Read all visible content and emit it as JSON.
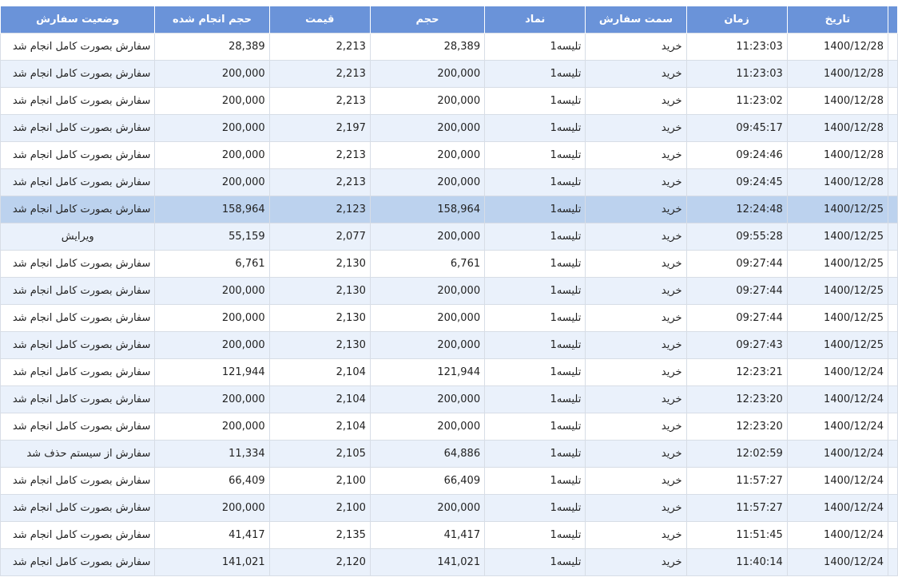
{
  "table": {
    "columns": [
      "تاریخ",
      "زمان",
      "سمت سفارش",
      "نماد",
      "حجم",
      "قیمت",
      "حجم انجام شده",
      "وضعیت سفارش"
    ],
    "rows": [
      {
        "date": "1400/12/28",
        "time": "11:23:03",
        "side": "خرید",
        "symbol": "تلیسه1",
        "volume": "28,389",
        "price": "2,213",
        "filled": "28,389",
        "status": "سفارش بصورت کامل انجام شد"
      },
      {
        "date": "1400/12/28",
        "time": "11:23:03",
        "side": "خرید",
        "symbol": "تلیسه1",
        "volume": "200,000",
        "price": "2,213",
        "filled": "200,000",
        "status": "سفارش بصورت کامل انجام شد"
      },
      {
        "date": "1400/12/28",
        "time": "11:23:02",
        "side": "خرید",
        "symbol": "تلیسه1",
        "volume": "200,000",
        "price": "2,213",
        "filled": "200,000",
        "status": "سفارش بصورت کامل انجام شد"
      },
      {
        "date": "1400/12/28",
        "time": "09:45:17",
        "side": "خرید",
        "symbol": "تلیسه1",
        "volume": "200,000",
        "price": "2,197",
        "filled": "200,000",
        "status": "سفارش بصورت کامل انجام شد"
      },
      {
        "date": "1400/12/28",
        "time": "09:24:46",
        "side": "خرید",
        "symbol": "تلیسه1",
        "volume": "200,000",
        "price": "2,213",
        "filled": "200,000",
        "status": "سفارش بصورت کامل انجام شد"
      },
      {
        "date": "1400/12/28",
        "time": "09:24:45",
        "side": "خرید",
        "symbol": "تلیسه1",
        "volume": "200,000",
        "price": "2,213",
        "filled": "200,000",
        "status": "سفارش بصورت کامل انجام شد"
      },
      {
        "date": "1400/12/25",
        "time": "12:24:48",
        "side": "خرید",
        "symbol": "تلیسه1",
        "volume": "158,964",
        "price": "2,123",
        "filled": "158,964",
        "status": "سفارش بصورت کامل انجام شد",
        "selected": true
      },
      {
        "date": "1400/12/25",
        "time": "09:55:28",
        "side": "خرید",
        "symbol": "تلیسه1",
        "volume": "200,000",
        "price": "2,077",
        "filled": "55,159",
        "status": "ویرایش"
      },
      {
        "date": "1400/12/25",
        "time": "09:27:44",
        "side": "خرید",
        "symbol": "تلیسه1",
        "volume": "6,761",
        "price": "2,130",
        "filled": "6,761",
        "status": "سفارش بصورت کامل انجام شد"
      },
      {
        "date": "1400/12/25",
        "time": "09:27:44",
        "side": "خرید",
        "symbol": "تلیسه1",
        "volume": "200,000",
        "price": "2,130",
        "filled": "200,000",
        "status": "سفارش بصورت کامل انجام شد"
      },
      {
        "date": "1400/12/25",
        "time": "09:27:44",
        "side": "خرید",
        "symbol": "تلیسه1",
        "volume": "200,000",
        "price": "2,130",
        "filled": "200,000",
        "status": "سفارش بصورت کامل انجام شد"
      },
      {
        "date": "1400/12/25",
        "time": "09:27:43",
        "side": "خرید",
        "symbol": "تلیسه1",
        "volume": "200,000",
        "price": "2,130",
        "filled": "200,000",
        "status": "سفارش بصورت کامل انجام شد"
      },
      {
        "date": "1400/12/24",
        "time": "12:23:21",
        "side": "خرید",
        "symbol": "تلیسه1",
        "volume": "121,944",
        "price": "2,104",
        "filled": "121,944",
        "status": "سفارش بصورت کامل انجام شد"
      },
      {
        "date": "1400/12/24",
        "time": "12:23:20",
        "side": "خرید",
        "symbol": "تلیسه1",
        "volume": "200,000",
        "price": "2,104",
        "filled": "200,000",
        "status": "سفارش بصورت کامل انجام شد"
      },
      {
        "date": "1400/12/24",
        "time": "12:23:20",
        "side": "خرید",
        "symbol": "تلیسه1",
        "volume": "200,000",
        "price": "2,104",
        "filled": "200,000",
        "status": "سفارش بصورت کامل انجام شد"
      },
      {
        "date": "1400/12/24",
        "time": "12:02:59",
        "side": "خرید",
        "symbol": "تلیسه1",
        "volume": "64,886",
        "price": "2,105",
        "filled": "11,334",
        "status": "سفارش از سیستم حذف شد"
      },
      {
        "date": "1400/12/24",
        "time": "11:57:27",
        "side": "خرید",
        "symbol": "تلیسه1",
        "volume": "66,409",
        "price": "2,100",
        "filled": "66,409",
        "status": "سفارش بصورت کامل انجام شد"
      },
      {
        "date": "1400/12/24",
        "time": "11:57:27",
        "side": "خرید",
        "symbol": "تلیسه1",
        "volume": "200,000",
        "price": "2,100",
        "filled": "200,000",
        "status": "سفارش بصورت کامل انجام شد"
      },
      {
        "date": "1400/12/24",
        "time": "11:51:45",
        "side": "خرید",
        "symbol": "تلیسه1",
        "volume": "41,417",
        "price": "2,135",
        "filled": "41,417",
        "status": "سفارش بصورت کامل انجام شد"
      },
      {
        "date": "1400/12/24",
        "time": "11:40:14",
        "side": "خرید",
        "symbol": "تلیسه1",
        "volume": "141,021",
        "price": "2,120",
        "filled": "141,021",
        "status": "سفارش بصورت کامل انجام شد"
      }
    ]
  },
  "colors": {
    "header_bg": "#6a93d9",
    "row_alt_bg": "#eaf1fb",
    "row_selected_bg": "#bcd2ee"
  }
}
